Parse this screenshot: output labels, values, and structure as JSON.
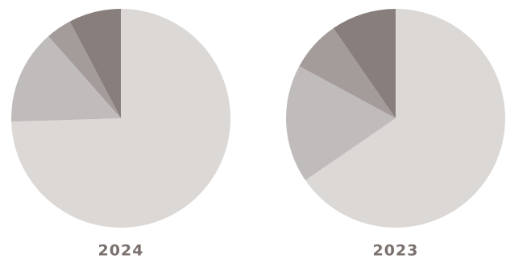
{
  "chart_data": [
    {
      "type": "pie",
      "title": "2024",
      "values": [
        74.5,
        14,
        3.8,
        7.7
      ],
      "colors": [
        "#dbd8d6",
        "#c0bcbb",
        "#a49c9a",
        "#887e7b"
      ]
    },
    {
      "type": "pie",
      "title": "2023",
      "values": [
        65.4,
        17.5,
        7.5,
        9.6
      ],
      "colors": [
        "#dbd8d6",
        "#c0bcbb",
        "#a49c9a",
        "#887e7b"
      ]
    }
  ]
}
